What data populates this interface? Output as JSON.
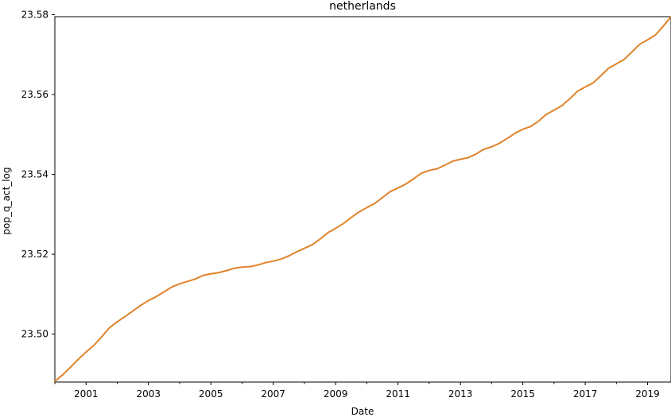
{
  "chart_data": {
    "type": "line",
    "title": "netherlands",
    "xlabel": "Date",
    "ylabel": "pop_q_act_log",
    "xlim": [
      2000.0,
      2019.75
    ],
    "ylim": [
      23.488,
      23.5795
    ],
    "x_ticks": [
      2001,
      2003,
      2005,
      2007,
      2009,
      2011,
      2013,
      2015,
      2017,
      2019
    ],
    "x_tick_labels": [
      "2001",
      "2003",
      "2005",
      "2007",
      "2009",
      "2011",
      "2013",
      "2015",
      "2017",
      "2019"
    ],
    "x_minor_ticks": [
      2000,
      2002,
      2004,
      2006,
      2008,
      2010,
      2012,
      2014,
      2016,
      2018
    ],
    "y_ticks": [
      23.5,
      23.52,
      23.54,
      23.56,
      23.58
    ],
    "y_tick_labels": [
      "23.50",
      "23.52",
      "23.54",
      "23.56",
      "23.58"
    ],
    "grid": false,
    "series": [
      {
        "color": "#e0832a",
        "x": [
          2000.0,
          2000.25,
          2000.5,
          2000.75,
          2001.0,
          2001.25,
          2001.5,
          2001.75,
          2002.0,
          2002.25,
          2002.5,
          2002.75,
          2003.0,
          2003.25,
          2003.5,
          2003.75,
          2004.0,
          2004.25,
          2004.5,
          2004.75,
          2005.0,
          2005.25,
          2005.5,
          2005.75,
          2006.0,
          2006.25,
          2006.5,
          2006.75,
          2007.0,
          2007.25,
          2007.5,
          2007.75,
          2008.0,
          2008.25,
          2008.5,
          2008.75,
          2009.0,
          2009.25,
          2009.5,
          2009.75,
          2010.0,
          2010.25,
          2010.5,
          2010.75,
          2011.0,
          2011.25,
          2011.5,
          2011.75,
          2012.0,
          2012.25,
          2012.5,
          2012.75,
          2013.0,
          2013.25,
          2013.5,
          2013.75,
          2014.0,
          2014.25,
          2014.5,
          2014.75,
          2015.0,
          2015.25,
          2015.5,
          2015.75,
          2016.0,
          2016.25,
          2016.5,
          2016.75,
          2017.0,
          2017.25,
          2017.5,
          2017.75,
          2018.0,
          2018.25,
          2018.5,
          2018.75,
          2019.0,
          2019.25,
          2019.5,
          2019.75
        ],
        "y": [
          23.4882,
          23.4898,
          23.4917,
          23.4937,
          23.4955,
          23.4972,
          23.4993,
          23.5016,
          23.5031,
          23.5044,
          23.5058,
          23.5072,
          23.5084,
          23.5094,
          23.5106,
          23.5118,
          23.5126,
          23.5132,
          23.5138,
          23.5147,
          23.5151,
          23.5154,
          23.5159,
          23.5165,
          23.5168,
          23.5169,
          23.5173,
          23.5179,
          23.5183,
          23.5188,
          23.5196,
          23.5206,
          23.5215,
          23.5224,
          23.5238,
          23.5254,
          23.5265,
          23.5277,
          23.5292,
          23.5306,
          23.5317,
          23.5327,
          23.5342,
          23.5357,
          23.5366,
          23.5376,
          23.5389,
          23.5403,
          23.541,
          23.5414,
          23.5423,
          23.5433,
          23.5438,
          23.5442,
          23.5451,
          23.5463,
          23.5469,
          23.5478,
          23.549,
          23.5503,
          23.5513,
          23.552,
          23.5533,
          23.555,
          23.5561,
          23.5572,
          23.5589,
          23.5608,
          23.5619,
          23.5629,
          23.5647,
          23.5666,
          23.5677,
          23.5688,
          23.5707,
          23.5726,
          23.5737,
          23.5749,
          23.5771,
          23.5795
        ]
      }
    ]
  }
}
